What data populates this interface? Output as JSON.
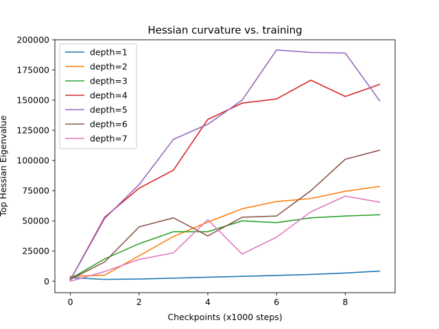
{
  "chart_data": {
    "type": "line",
    "title": "Hessian curvature vs. training",
    "xlabel": "Checkpoints (x1000 steps)",
    "ylabel": "Top Hessian Eigenvalue",
    "x": [
      0,
      1,
      2,
      3,
      4,
      5,
      6,
      7,
      8,
      9
    ],
    "xlim": [
      -0.45,
      9.45
    ],
    "ylim": [
      -9500,
      200000
    ],
    "xticks": [
      0,
      2,
      4,
      6,
      8
    ],
    "xtick_labels": [
      "0",
      "2",
      "4",
      "6",
      "8"
    ],
    "yticks": [
      0,
      25000,
      50000,
      75000,
      100000,
      125000,
      150000,
      175000,
      200000
    ],
    "ytick_labels": [
      "0",
      "25000",
      "50000",
      "75000",
      "100000",
      "125000",
      "150000",
      "175000",
      "200000"
    ],
    "grid": false,
    "legend_position": "top-left",
    "series": [
      {
        "name": "depth=1",
        "color": "#1f77b4",
        "values": [
          3000,
          1500,
          1800,
          2500,
          3300,
          4000,
          4800,
          5600,
          6800,
          8400
        ]
      },
      {
        "name": "depth=2",
        "color": "#ff7f0e",
        "values": [
          4000,
          5000,
          21000,
          37000,
          49000,
          60000,
          66000,
          68500,
          74500,
          78500
        ]
      },
      {
        "name": "depth=3",
        "color": "#2ca02c",
        "values": [
          2000,
          18500,
          31000,
          41000,
          41000,
          50000,
          48500,
          52500,
          54000,
          55000
        ]
      },
      {
        "name": "depth=4",
        "color": "#d62728",
        "values": [
          1000,
          53000,
          77000,
          92000,
          134000,
          147500,
          151000,
          166500,
          153000,
          163000
        ]
      },
      {
        "name": "depth=5",
        "color": "#9467bd",
        "values": [
          1000,
          52000,
          80000,
          117500,
          130000,
          150000,
          191500,
          189500,
          189000,
          149500
        ]
      },
      {
        "name": "depth=6",
        "color": "#8c564b",
        "values": [
          1500,
          16000,
          45000,
          52500,
          37500,
          53000,
          54000,
          75000,
          101000,
          108500
        ]
      },
      {
        "name": "depth=7",
        "color": "#e377c2",
        "values": [
          0,
          8000,
          18000,
          23500,
          51000,
          22500,
          36500,
          57500,
          70500,
          65500
        ]
      }
    ]
  }
}
